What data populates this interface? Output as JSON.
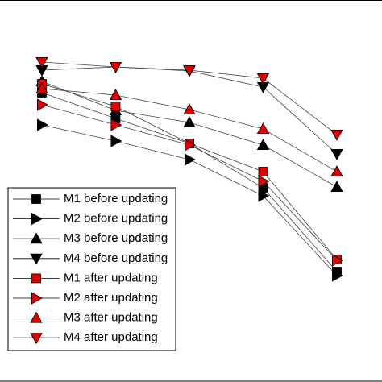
{
  "chart_data": {
    "type": "line",
    "x": [
      1,
      2,
      3,
      4,
      5
    ],
    "xlim": [
      0.432,
      5.612
    ],
    "ylim": [
      0,
      474
    ],
    "legend": "lower left",
    "series": [
      {
        "name": "M1 before updating",
        "color": "#000000",
        "marker": "square",
        "values": [
          359,
          327,
          296,
          241,
          137
        ]
      },
      {
        "name": "M2 before updating",
        "color": "#000000",
        "marker": "triangle-right",
        "values": [
          319,
          299,
          276,
          231,
          132
        ]
      },
      {
        "name": "M3 before updating",
        "color": "#000000",
        "marker": "triangle-up",
        "values": [
          373,
          337,
          322,
          294,
          242
        ]
      },
      {
        "name": "M4 before updating",
        "color": "#000000",
        "marker": "triangle-down",
        "values": [
          387,
          391,
          386,
          366,
          283
        ]
      },
      {
        "name": "M1 after updating",
        "color": "#e00000",
        "marker": "square",
        "values": [
          370,
          342,
          296,
          261,
          152
        ]
      },
      {
        "name": "M2 after updating",
        "color": "#e00000",
        "marker": "triangle-right",
        "values": [
          344,
          319,
          294,
          249,
          151
        ]
      },
      {
        "name": "M3 after updating",
        "color": "#e00000",
        "marker": "triangle-up",
        "values": [
          364,
          356,
          338,
          314,
          261
        ]
      },
      {
        "name": "M4 after updating",
        "color": "#e00000",
        "marker": "triangle-down",
        "values": [
          397,
          391,
          387,
          377,
          307
        ]
      }
    ]
  }
}
